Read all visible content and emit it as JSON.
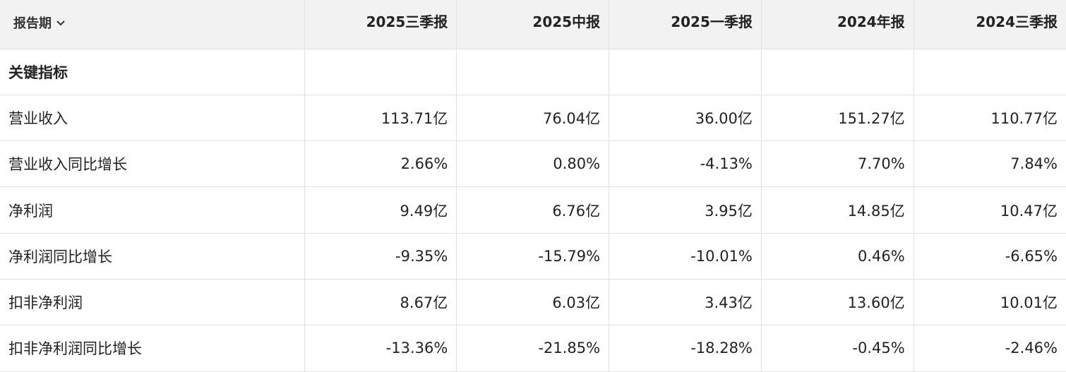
{
  "header": {
    "period_label": "报告期",
    "columns": [
      "2025三季报",
      "2025中报",
      "2025一季报",
      "2024年报",
      "2024三季报"
    ]
  },
  "section": {
    "title": "关键指标"
  },
  "rows": [
    {
      "label": "营业收入",
      "values": [
        "113.71亿",
        "76.04亿",
        "36.00亿",
        "151.27亿",
        "110.77亿"
      ]
    },
    {
      "label": "营业收入同比增长",
      "values": [
        "2.66%",
        "0.80%",
        "-4.13%",
        "7.70%",
        "7.84%"
      ]
    },
    {
      "label": "净利润",
      "values": [
        "9.49亿",
        "6.76亿",
        "3.95亿",
        "14.85亿",
        "10.47亿"
      ]
    },
    {
      "label": "净利润同比增长",
      "values": [
        "-9.35%",
        "-15.79%",
        "-10.01%",
        "0.46%",
        "-6.65%"
      ]
    },
    {
      "label": "扣非净利润",
      "values": [
        "8.67亿",
        "6.03亿",
        "3.43亿",
        "13.60亿",
        "10.01亿"
      ]
    },
    {
      "label": "扣非净利润同比增长",
      "values": [
        "-13.36%",
        "-21.85%",
        "-18.28%",
        "-0.45%",
        "-2.46%"
      ]
    }
  ],
  "icons": {
    "period_dropdown": "chevron-down-icon"
  },
  "colors": {
    "header_bg": "#f2f2f2",
    "border": "#e2e2e2",
    "text": "#222222"
  }
}
